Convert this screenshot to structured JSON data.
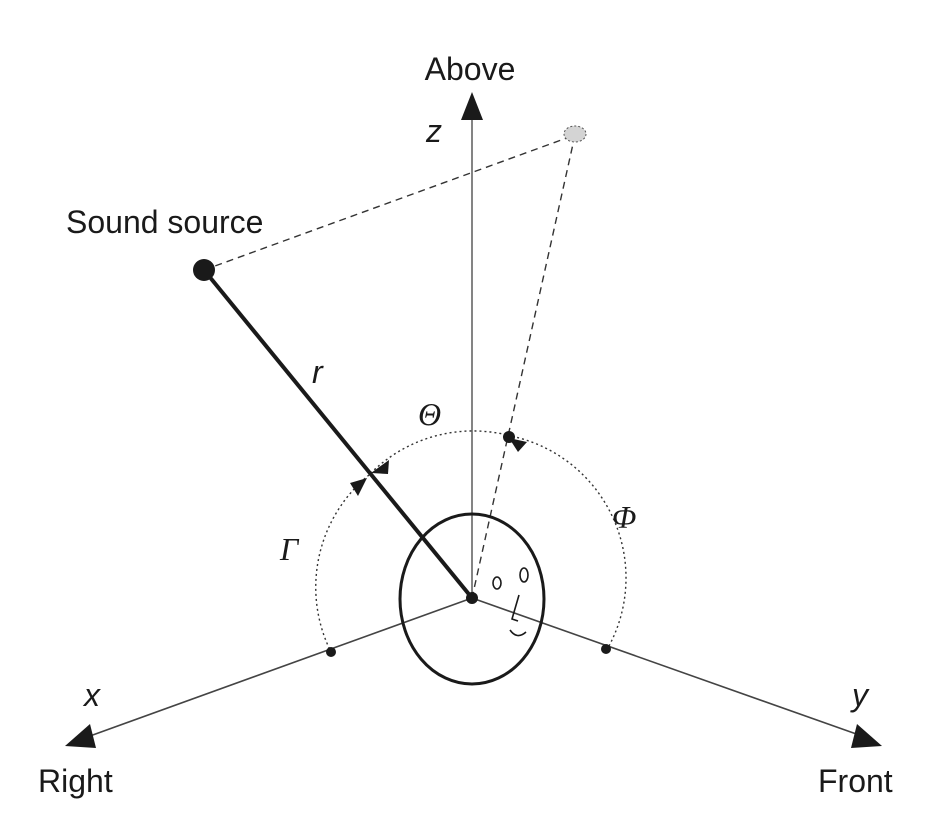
{
  "labels": {
    "above": "Above",
    "z": "z",
    "sound_source": "Sound source",
    "r": "r",
    "theta": "Θ",
    "phi": "Φ",
    "gamma": "Γ",
    "x": "x",
    "y": "y",
    "right": "Right",
    "front": "Front"
  },
  "colors": {
    "ink": "#1a1a1a",
    "projection_fill": "#d4d4d4",
    "background": "#ffffff"
  }
}
